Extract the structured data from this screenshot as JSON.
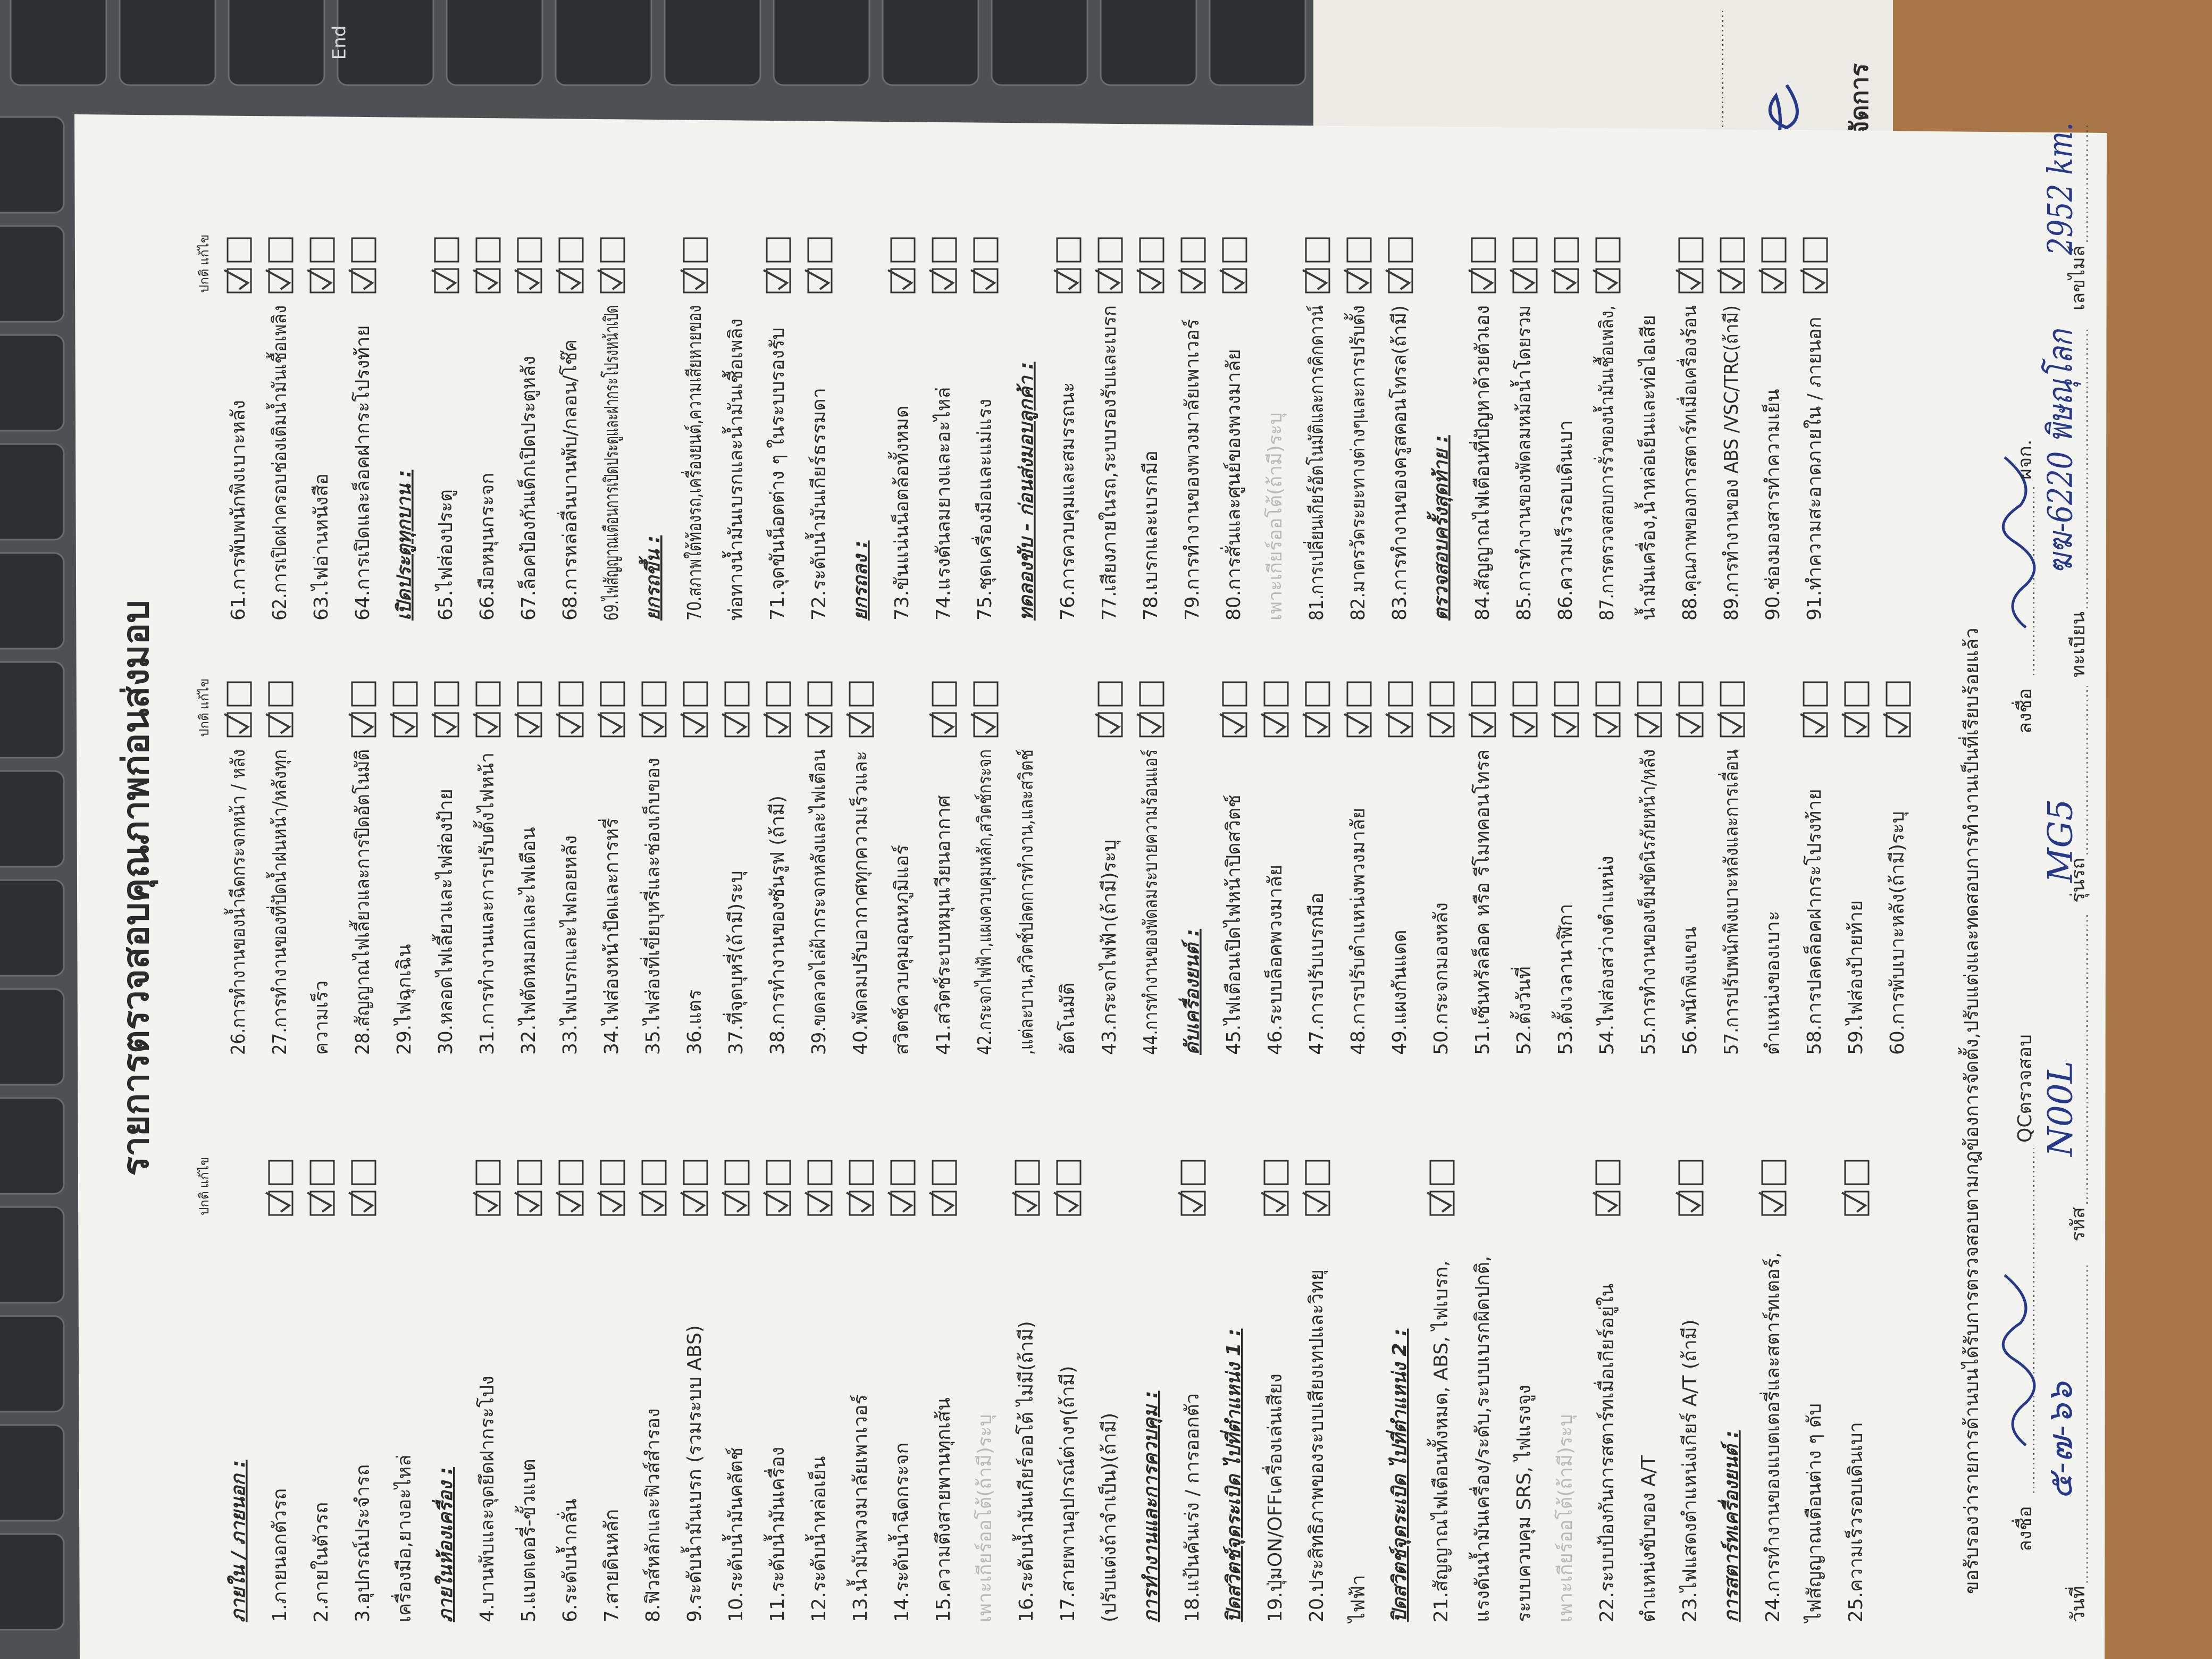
{
  "keyboard": {
    "key": "End"
  },
  "side_sheet": {
    "label": "ผู้จัดการ"
  },
  "form": {
    "title": "รายการตรวจสอบคุณภาพก่อนส่งมอบ",
    "check_headers": [
      "ปกติ",
      "แก้ไข"
    ],
    "columns": [
      {
        "groups": [
          {
            "heading": "ภายใน / ภายนอก :",
            "lines": [
              "1.ภายนอกตัวรถ",
              "2.ภายในตัวรถ",
              "3.อุปกรณ์ประจำรถ",
              "เครื่องมือ,ยางอะไหล่"
            ]
          },
          {
            "heading": "ภายในห้องเครื่อง :",
            "lines": [
              "4.บานพับและจุดยึดฝากระโปง",
              "5.แบตเตอรี่-ขั้วแบต",
              "6.ระดับน้ำกลั่น",
              "7.สายดินหลัก",
              "8.ฟิวส์หลักและฟิวส์สำรอง",
              "9.ระดับน้ำมันเบรก (รวมระบบ ABS)",
              "10.ระดับน้ำมันคลัตช์",
              "11.ระดับน้ำมันเครื่อง",
              "12.ระดับน้ำหล่อเย็น",
              "13.น้ำมันพวงมาลัยเพาเวอร์",
              "14.ระดับน้ำฉีดกระจก",
              "15.ความตึงสายพานทุกเส้น",
              "เพาะเกียร์ออโต้(ถ้ามี)ระบุ",
              "16.ระดับน้ำมันเกียร์ออโต้ ไม่มี(ถ้ามี)",
              "17.สายพานอุปกรณ์ต่างๆ(ถ้ามี)",
              "(ปรับแต่งถ้าจำเป็น)(ถ้ามี)"
            ]
          },
          {
            "heading": "การทำงานและการควบคุม :",
            "lines": [
              "18.แป้นคันเร่ง / การออกตัว"
            ]
          },
          {
            "heading": "ปิดสวิตช์จุดระเบิด ไปที่ตำแหน่ง 1 :",
            "lines": [
              "19.ปุ่มON/OFFเครื่องเล่นเสียง",
              "20.ประสิทธิภาพของระบบเสียงเทปและวิทยุ",
              "ไฟฟ้า"
            ]
          },
          {
            "heading": "ปิดสวิตช์จุดระเบิด ไปที่ตำแหน่ง 2 :",
            "lines": [
              "21.สัญญาณไฟเตือนทั้งหมด, ABS, ไฟเบรก,",
              "แรงดันน้ำมันเครื่อง/ระดับ,ระบบเบรกผิดปกติ,",
              "ระบบควบคุม SRS, ไฟแรงจูง",
              "เพาะเกียร์ออโต้(ถ้ามี)ระบุ",
              "22.ระบบป้องกันการสตาร์ทเมื่อเกียร์อยู่ใน",
              "ตำแหน่งขับของ A/T",
              "23.ไฟแสดงตำแหน่งเกียร์ A/T (ถ้ามี)"
            ]
          },
          {
            "heading": "การสตาร์ทเครื่องยนต์ :",
            "lines": [
              "24.การทำงานของแบตเตอรี่และสตาร์ทเตอร์,",
              "ไฟสัญญาณเตือนต่าง ๆ ดับ",
              "25.ความเร็วรอบเดินเบา"
            ]
          }
        ]
      },
      {
        "groups": [
          {
            "lines": [
              "26.การทำงานของน้ำฉีดกระจกหน้า / หลัง",
              "27.การทำงานของที่ปัดน้ำฝนหน้า/หลังทุก",
              "ความเร็ว",
              "28.สัญญาณไฟเลี้ยวและการปิดอัตโนมัติ",
              "29.ไฟฉุกเฉิน",
              "30.หลอดไฟเลี้ยวและไฟส่องป้าย",
              "31.การทำงานและการปรับตั้งไฟหน้า",
              "32.ไฟตัดหมอกและไฟเตือน",
              "33.ไฟเบรกและไฟถอยหลัง",
              "34.ไฟส่องหน้าปัดและการหรี่",
              "35.ไฟส่องที่เขี่ยบุหรี่และช่องเก็บของ",
              "36.แตร",
              "37.ที่จุดบุหรี่(ถ้ามี)ระบุ",
              "38.การทำงานของซันรูฟ (ถ้ามี)",
              "39.ขดลวดไล่ฝ้ากระจกหลังและไฟเตือน",
              "40.พัดลมปรับอากาศทุกความเร็วและ",
              "สวิตช์ควบคุมอุณหภูมิแอร์",
              "41.สวิตช์ระบบหมุนเวียนอากาศ",
              "42.กระจกไฟฟ้า,แผงควบคุมหลัก,สวิตช์กระจก",
              ",แต่ละบาน,สวิตช์ปลดการทำงาน,และสวิตช์",
              "อัตโนมัติ",
              "43.กระจกไฟฟ้า(ถ้ามี)ระบุ",
              "44.การทำงานของพัดลมระบายความร้อนแอร์"
            ]
          },
          {
            "heading": "ดับเครื่องยนต์ :",
            "lines": [
              "45.ไฟเตือนเปิดไฟหน้าปิดสวิตช์",
              "46.ระบบล็อคพวงมาลัย",
              "47.การปรับเบรกมือ",
              "48.การปรับตำแหน่งพวงมาลัย",
              "49.แผงกันแดด",
              "50.กระจกมองหลัง",
              "51.เซ็นทรัลล็อค หรือ รีโมทคอนโทรล",
              "52.ตั้งวันที่",
              "53.ตั้งเวลานาฬิกา",
              "54.ไฟส่องสว่างตำแหน่ง",
              "55.การทำงานของเข็มขัดนิรภัยหน้า/หลัง",
              "56.พนักพิงแขน",
              "57.การปรับพนักพิงเบาะหลังและการเลื่อน",
              "ตำแหน่งของเบาะ",
              "58.การปลดล็อคฝากระโปรงท้าย",
              "59.ไฟส่องป้ายท้าย",
              "60.การพับเบาะหลัง(ถ้ามี)ระบุ"
            ]
          }
        ]
      },
      {
        "groups": [
          {
            "lines": [
              "61.การพับพนักพิงเบาะหลัง",
              "62.การเปิดฝาครอบช่องเติมน้ำมันเชื้อเพลิง",
              "63.ไฟอ่านหนังสือ",
              "64.การเปิดและล็อคฝากระโปรงท้าย"
            ]
          },
          {
            "heading": "เปิดประตูทุกบาน :",
            "lines": [
              "65.ไฟส่องประตู",
              "66.มือหมุนกระจก",
              "67.ล็อคป้องกันเด็กเปิดประตูหลัง",
              "68.การหล่อลื่นบานพับ/กลอน/โช๊ค",
              "69.ไฟสัญญาณเตือนการเปิดประตูและฝากระโปรงหน้าเปิด"
            ]
          },
          {
            "heading": "ยกรถขึ้น :",
            "lines": [
              "70.สภาพใต้ท้องรถ,เครื่องยนต์,ความเสียหายของ",
              "ท่อทางน้ำมันเบรกและน้ำมันเชื้อเพลิง",
              "71.จุดขันน็อตต่าง ๆ ในระบบรองรับ",
              "72.ระดับน้ำมันเกียร์ธรรมดา"
            ]
          },
          {
            "heading": "ยกรถลง :",
            "lines": [
              "73.ขันแน่นน็อตล้อทั้งหมด",
              "74.แรงดันลมยางและอะไหล่",
              "75.ชุดเครื่องมือและแม่แรง"
            ]
          },
          {
            "heading": "ทดลองขับ - ก่อนส่งมอบลูกค้า :",
            "lines": [
              "76.การควบคุมและสมรรถนะ",
              "77.เสียงภายในรถ,ระบบรองรับและเบรก",
              "78.เบรกและเบรกมือ",
              "79.การทำงานของพวงมาลัยเพาเวอร์",
              "80.การสั่นและศูนย์ของพวงมาลัย",
              "เพาะเกียร์ออโต้(ถ้ามี)ระบุ",
              "81.การเปลี่ยนเกียร์อัตโนมัติและการคิกดาวน์",
              "82.มาตรวัดระยะทางต่างๆและการปรับตั้ง",
              "83.การทำงานของครูสคอนโทรล(ถ้ามี)"
            ]
          },
          {
            "heading": "ตรวจสอบครั้งสุดท้าย :",
            "lines": [
              "84.สัญญาณไฟเตือนที่ปัญหาด้วยตัวเอง",
              "85.การทำงานของพัดลมหม้อน้ำโดยรวม",
              "86.ความเร็วรอบเดินเบา",
              "87.การตรวจสอบการรั่วของน้ำมันเชื้อเพลิง,",
              "น้ำมันเครื่อง,น้ำหล่อเย็นและท่อไอเสีย",
              "88.คุณภาพของการสตาร์ทเมื่อเครื่องร้อน",
              "89.การทำงานของ ABS /VSC/TRC(ถ้ามี)",
              "90.ช่องมองสารทำความเย็น",
              "91.ทำความสะอาดภายใน / ภายนอก"
            ]
          }
        ]
      }
    ],
    "declaration": "ขอรับรองว่ารายการด้านบนได้รับการตรวจสอบตามกฎข้องการจัดตั้ง,ปรับแต่งและทดสอบการทำงานเป็นที่เรียบร้อยแล้ว",
    "signatures": [
      {
        "label": "ลงชื่อ",
        "role": "QCตรวจสอบ"
      },
      {
        "label": "ลงชื่อ",
        "role": "ผจก."
      }
    ],
    "fields": [
      {
        "label": "วันที่",
        "value": "๕-๗-๖๖"
      },
      {
        "label": "รหัส",
        "value": "N00L"
      },
      {
        "label": "รุ่นรถ",
        "value": "MG5"
      },
      {
        "label": "ทะเบียน",
        "value": "ฆฆ-6220 พิษณุโลก"
      },
      {
        "label": "เลขไมล์",
        "value": "2952 km."
      }
    ]
  }
}
